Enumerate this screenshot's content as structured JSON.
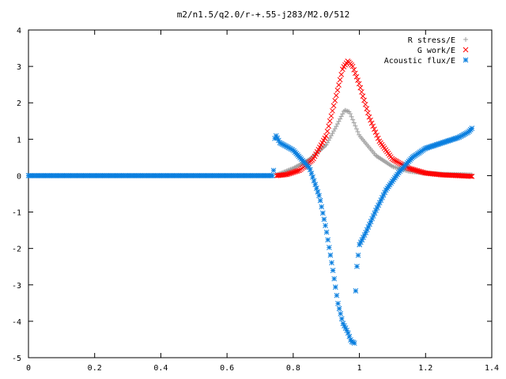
{
  "chart_data": {
    "type": "scatter",
    "title": "m2/n1.5/q2.0/r-+.55-j283/M2.0/512",
    "xlabel": "",
    "ylabel": "",
    "xlim": [
      0,
      1.4
    ],
    "ylim": [
      -5,
      4
    ],
    "xticks": [
      "0",
      "0.2",
      "0.4",
      "0.6",
      "0.8",
      "1",
      "1.2",
      "1.4"
    ],
    "yticks": [
      "-5",
      "-4",
      "-3",
      "-2",
      "-1",
      "0",
      "1",
      "2",
      "3",
      "4"
    ],
    "grid": false,
    "legend_position": "top-right",
    "series": [
      {
        "name": "R stress/E",
        "marker": "plus",
        "color": "#a0a0a0",
        "x": [
          0.75,
          0.8,
          0.85,
          0.9,
          0.93,
          0.955,
          0.97,
          1.0,
          1.05,
          1.1,
          1.15,
          1.2,
          1.25,
          1.3,
          1.34
        ],
        "y": [
          0.02,
          0.2,
          0.45,
          0.85,
          1.35,
          1.8,
          1.75,
          1.1,
          0.55,
          0.25,
          0.12,
          0.07,
          0.04,
          0.03,
          0.02
        ]
      },
      {
        "name": "G work/E",
        "marker": "cross",
        "color": "#ff0000",
        "x": [
          0.75,
          0.78,
          0.82,
          0.86,
          0.9,
          0.93,
          0.95,
          0.965,
          0.98,
          1.0,
          1.03,
          1.06,
          1.1,
          1.15,
          1.2,
          1.25,
          1.3,
          1.34
        ],
        "y": [
          0.0,
          0.03,
          0.15,
          0.45,
          1.1,
          2.2,
          2.95,
          3.15,
          3.0,
          2.5,
          1.6,
          0.95,
          0.45,
          0.2,
          0.07,
          0.02,
          0.0,
          -0.02
        ]
      },
      {
        "name": "Acoustic flux/E",
        "marker": "star",
        "color": "#0a7fdf",
        "x": [
          0.0,
          0.2,
          0.4,
          0.6,
          0.74,
          0.745,
          0.76,
          0.8,
          0.85,
          0.88,
          0.9,
          0.92,
          0.935,
          0.95,
          0.965,
          0.975,
          0.985,
          0.99,
          1.0,
          1.02,
          1.05,
          1.08,
          1.12,
          1.16,
          1.2,
          1.25,
          1.3,
          1.33,
          1.34
        ],
        "y": [
          0.0,
          0.0,
          0.0,
          0.0,
          0.0,
          1.15,
          0.9,
          0.7,
          0.2,
          -0.6,
          -1.5,
          -2.6,
          -3.5,
          -4.05,
          -4.3,
          -4.55,
          -4.6,
          -2.7,
          -1.9,
          -1.55,
          -0.95,
          -0.4,
          0.1,
          0.5,
          0.75,
          0.9,
          1.05,
          1.2,
          1.3
        ]
      }
    ]
  }
}
